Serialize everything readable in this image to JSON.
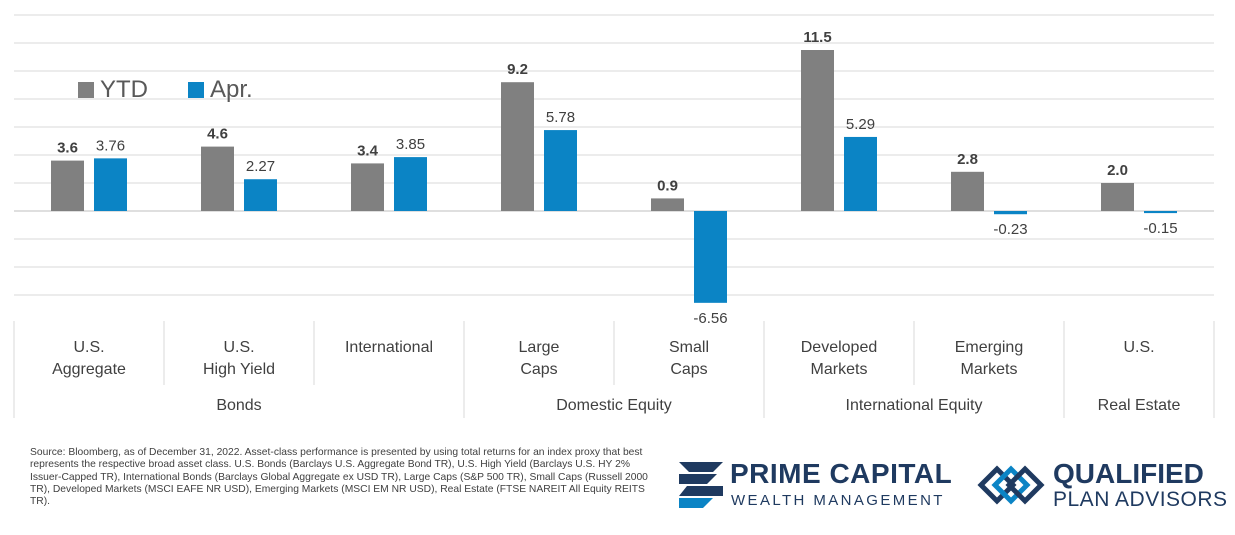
{
  "chart_data": {
    "type": "bar",
    "categories": [
      "U.S.\nAggregate",
      "U.S.\nHigh Yield",
      "International",
      "Large\nCaps",
      "Small\nCaps",
      "Developed\nMarkets",
      "Emerging\nMarkets",
      "U.S."
    ],
    "groups": [
      {
        "label": "Bonds",
        "span": [
          0,
          2
        ]
      },
      {
        "label": "Domestic Equity",
        "span": [
          3,
          4
        ]
      },
      {
        "label": "International Equity",
        "span": [
          5,
          6
        ]
      },
      {
        "label": "Real Estate",
        "span": [
          7,
          7
        ]
      }
    ],
    "series": [
      {
        "name": "YTD",
        "color": "#808080",
        "values": [
          3.6,
          4.6,
          3.4,
          9.2,
          0.9,
          11.5,
          2.8,
          2.0
        ],
        "labels": [
          "3.6",
          "4.6",
          "3.4",
          "9.2",
          "0.9",
          "11.5",
          "2.8",
          "2.0"
        ]
      },
      {
        "name": "Apr.",
        "color": "#0b84c5",
        "values": [
          3.76,
          2.27,
          3.85,
          5.78,
          -6.56,
          5.29,
          -0.23,
          -0.15
        ],
        "labels": [
          "3.76",
          "2.27",
          "3.85",
          "5.78",
          "-6.56",
          "5.29",
          "-0.23",
          "-0.15"
        ]
      }
    ],
    "ylim": [
      -8,
      14
    ],
    "grid": true,
    "legend": "top-left",
    "title": "",
    "xlabel": "",
    "ylabel": ""
  },
  "footer": {
    "source": "Source: Bloomberg, as of December 31, 2022. Asset-class performance is presented by using total returns for an index proxy that best represents the respective broad asset class. U.S. Bonds (Barclays U.S. Aggregate Bond TR), U.S. High Yield (Barclays U.S. HY 2% Issuer-Capped TR), International Bonds (Barclays Global Aggregate ex USD TR), Large Caps (S&P 500 TR), Small Caps (Russell 2000 TR), Developed Markets (MSCI EAFE NR USD), Emerging Markets (MSCI EM NR USD), Real Estate (FTSE NAREIT All Equity REITS TR)."
  },
  "logos": {
    "prime_capital": {
      "name": "PRIME CAPITAL",
      "sub": "WEALTH MANAGEMENT"
    },
    "qualified": {
      "name": "QUALIFIED",
      "sub": "PLAN ADVISORS"
    }
  },
  "colors": {
    "grid": "#d9d9d9",
    "axis": "#bfbfbf",
    "text": "#404040",
    "brand": "#1f3a60",
    "accent": "#0b84c5"
  }
}
